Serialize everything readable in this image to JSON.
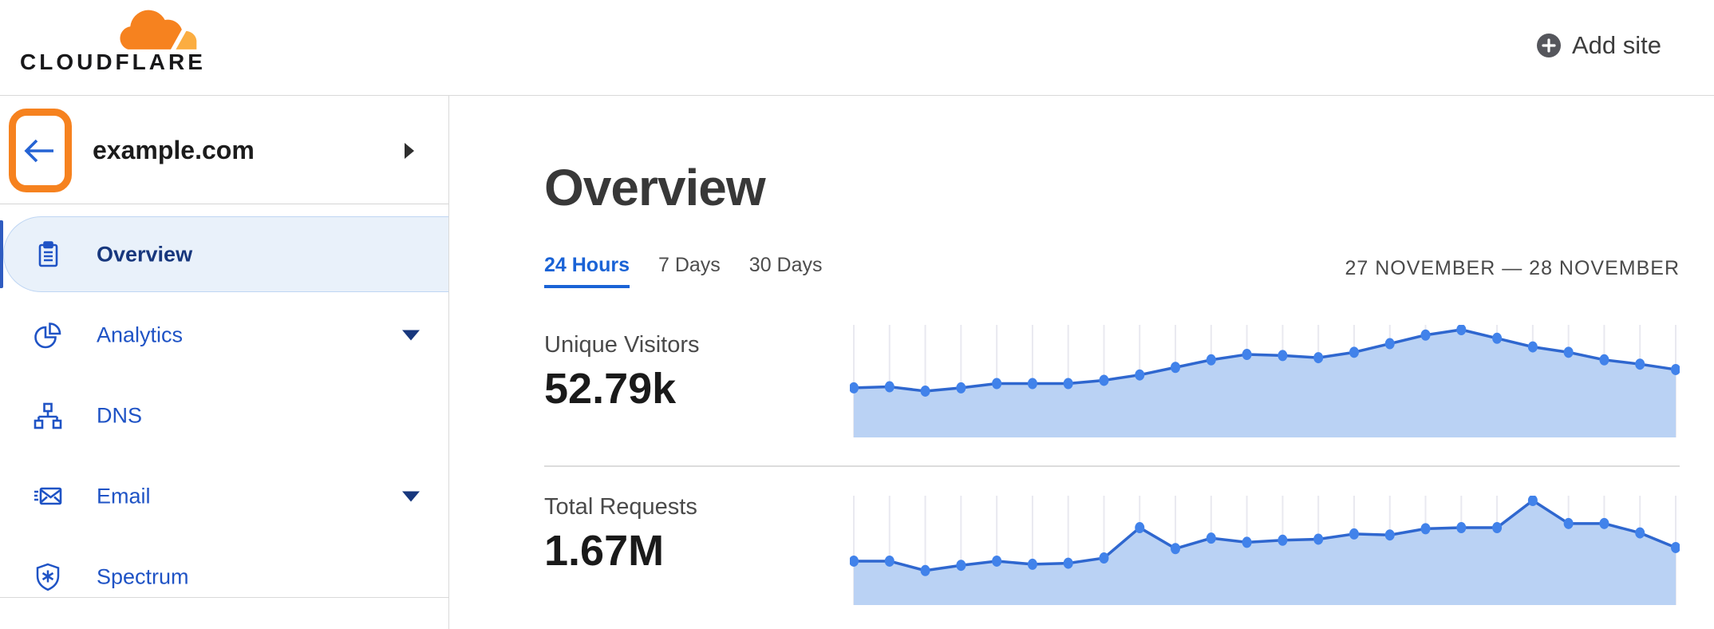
{
  "header": {
    "brand": "CLOUDFLARE",
    "add_site_label": "Add site"
  },
  "sidebar": {
    "site": {
      "name": "example.com"
    },
    "items": [
      {
        "label": "Overview",
        "icon": "clipboard-icon",
        "selected": true,
        "expandable": false
      },
      {
        "label": "Analytics",
        "icon": "pie-chart-icon",
        "selected": false,
        "expandable": true
      },
      {
        "label": "DNS",
        "icon": "sitemap-icon",
        "selected": false,
        "expandable": false
      },
      {
        "label": "Email",
        "icon": "envelope-icon",
        "selected": false,
        "expandable": true
      },
      {
        "label": "Spectrum",
        "icon": "shield-icon",
        "selected": false,
        "expandable": false
      }
    ]
  },
  "main": {
    "title": "Overview",
    "tabs": [
      {
        "label": "24 Hours",
        "active": true
      },
      {
        "label": "7 Days",
        "active": false
      },
      {
        "label": "30 Days",
        "active": false
      }
    ],
    "date_range": "27 NOVEMBER — 28 NOVEMBER",
    "metrics": [
      {
        "label": "Unique Visitors",
        "value": "52.79k"
      },
      {
        "label": "Total Requests",
        "value": "1.67M"
      }
    ]
  },
  "chart_data": [
    {
      "type": "area",
      "title": "Unique Visitors",
      "value_label": "52.79k",
      "x_axis": "Time, hourly over 24 hours (27 November – 28 November)",
      "y_axis": "Unique visitors (no numeric scale shown)",
      "x_tick_count": 24,
      "grid": "vertical gridline at each data point",
      "legend": "none",
      "values_relative_pct": [
        46,
        47,
        43,
        46,
        50,
        50,
        50,
        53,
        58,
        65,
        72,
        77,
        76,
        74,
        79,
        87,
        95,
        100,
        92,
        84,
        79,
        72,
        68,
        63
      ]
    },
    {
      "type": "area",
      "title": "Total Requests",
      "value_label": "1.67M",
      "x_axis": "Time, hourly over 24 hours (27 November – 28 November)",
      "y_axis": "Requests (no numeric scale shown)",
      "x_tick_count": 24,
      "grid": "vertical gridline at each data point",
      "legend": "none",
      "values_relative_pct": [
        42,
        42,
        33,
        38,
        42,
        39,
        40,
        45,
        74,
        54,
        64,
        60,
        62,
        63,
        68,
        67,
        73,
        74,
        74,
        100,
        78,
        78,
        69,
        55
      ]
    }
  ],
  "colors": {
    "brand_orange": "#f6821f",
    "brand_orange_light": "#fbad41",
    "nav_blue": "#1f53c5",
    "nav_selected_blue": "#17377d",
    "tab_active_blue": "#1a63d6",
    "chart_line": "#2f67cf",
    "chart_dot": "#4182ea",
    "chart_fill": "#bad2f4",
    "chart_grid": "#e9e9f0"
  }
}
